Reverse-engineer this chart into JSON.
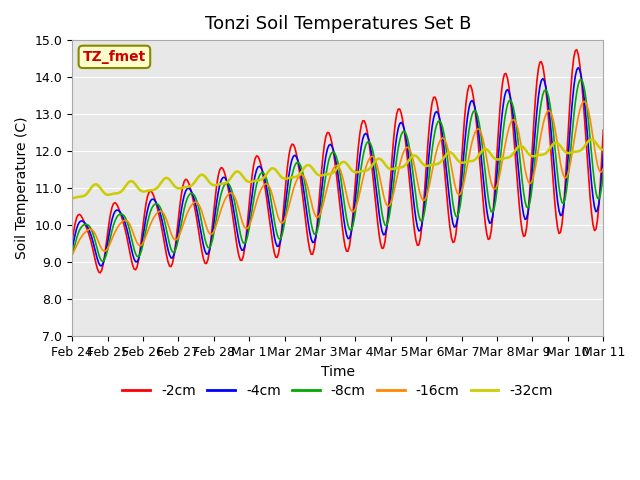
{
  "title": "Tonzi Soil Temperatures Set B",
  "xlabel": "Time",
  "ylabel": "Soil Temperature (C)",
  "annotation": "TZ_fmet",
  "ylim": [
    7.0,
    15.0
  ],
  "yticks": [
    7.0,
    8.0,
    9.0,
    10.0,
    11.0,
    12.0,
    13.0,
    14.0,
    15.0
  ],
  "xtick_labels": [
    "Feb 24",
    "Feb 25",
    "Feb 26",
    "Feb 27",
    "Feb 28",
    "Mar 1",
    "Mar 2",
    "Mar 3",
    "Mar 4",
    "Mar 5",
    "Mar 6",
    "Mar 7",
    "Mar 8",
    "Mar 9",
    "Mar 10",
    "Mar 11"
  ],
  "series_colors": [
    "#ff0000",
    "#0000ff",
    "#00aa00",
    "#ff8800",
    "#cccc00"
  ],
  "series_labels": [
    "-2cm",
    "-4cm",
    "-8cm",
    "-16cm",
    "-32cm"
  ],
  "background_color": "#e8e8e8",
  "title_fontsize": 13,
  "axis_fontsize": 10,
  "tick_fontsize": 9,
  "legend_fontsize": 10
}
